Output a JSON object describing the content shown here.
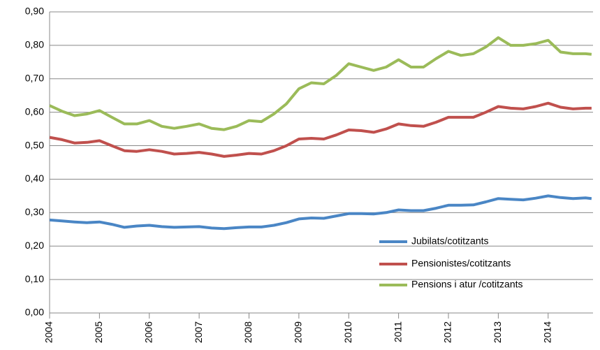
{
  "chart_data": {
    "type": "line",
    "x": [
      2004,
      2004.25,
      2004.5,
      2004.75,
      2005,
      2005.25,
      2005.5,
      2005.75,
      2006,
      2006.25,
      2006.5,
      2006.75,
      2007,
      2007.25,
      2007.5,
      2007.75,
      2008,
      2008.25,
      2008.5,
      2008.75,
      2009,
      2009.25,
      2009.5,
      2009.75,
      2010,
      2010.25,
      2010.5,
      2010.75,
      2011,
      2011.25,
      2011.5,
      2011.75,
      2012,
      2012.25,
      2012.5,
      2012.75,
      2013,
      2013.25,
      2013.5,
      2013.75,
      2014,
      2014.25,
      2014.5,
      2014.75,
      2014.87
    ],
    "series": [
      {
        "name": "Jubilats/cotitzants",
        "color": "#4a86c5",
        "values": [
          0.278,
          0.275,
          0.272,
          0.27,
          0.272,
          0.265,
          0.256,
          0.26,
          0.262,
          0.258,
          0.256,
          0.257,
          0.258,
          0.254,
          0.252,
          0.255,
          0.257,
          0.257,
          0.262,
          0.27,
          0.281,
          0.284,
          0.283,
          0.29,
          0.297,
          0.297,
          0.296,
          0.3,
          0.308,
          0.306,
          0.306,
          0.313,
          0.322,
          0.322,
          0.323,
          0.332,
          0.342,
          0.34,
          0.338,
          0.343,
          0.35,
          0.345,
          0.342,
          0.344,
          0.342
        ]
      },
      {
        "name": "Pensionistes/cotitzants",
        "color": "#c0504d",
        "values": [
          0.525,
          0.518,
          0.508,
          0.51,
          0.515,
          0.5,
          0.485,
          0.483,
          0.488,
          0.483,
          0.475,
          0.477,
          0.48,
          0.475,
          0.468,
          0.472,
          0.477,
          0.475,
          0.485,
          0.5,
          0.52,
          0.522,
          0.52,
          0.532,
          0.547,
          0.545,
          0.54,
          0.55,
          0.565,
          0.56,
          0.558,
          0.57,
          0.585,
          0.585,
          0.585,
          0.6,
          0.617,
          0.612,
          0.61,
          0.617,
          0.627,
          0.615,
          0.61,
          0.612,
          0.612
        ]
      },
      {
        "name": "Pensions i atur /cotitzants",
        "color": "#9bbb59",
        "values": [
          0.62,
          0.603,
          0.59,
          0.595,
          0.605,
          0.585,
          0.565,
          0.565,
          0.575,
          0.558,
          0.552,
          0.558,
          0.565,
          0.552,
          0.548,
          0.558,
          0.575,
          0.572,
          0.595,
          0.625,
          0.67,
          0.688,
          0.685,
          0.71,
          0.745,
          0.735,
          0.725,
          0.735,
          0.757,
          0.735,
          0.735,
          0.76,
          0.782,
          0.77,
          0.775,
          0.795,
          0.823,
          0.8,
          0.8,
          0.805,
          0.815,
          0.78,
          0.775,
          0.775,
          0.773
        ]
      }
    ],
    "xlim": [
      2004,
      2014.9
    ],
    "xticks": [
      2004,
      2005,
      2006,
      2007,
      2008,
      2009,
      2010,
      2011,
      2012,
      2013,
      2014
    ],
    "ylim": [
      0,
      0.9
    ],
    "yticks": [
      {
        "value": 0,
        "label": "0,00"
      },
      {
        "value": 0.1,
        "label": "0,10"
      },
      {
        "value": 0.2,
        "label": "0,20"
      },
      {
        "value": 0.3,
        "label": "0,30"
      },
      {
        "value": 0.4,
        "label": "0,40"
      },
      {
        "value": 0.5,
        "label": "0,50"
      },
      {
        "value": 0.6,
        "label": "0,60"
      },
      {
        "value": 0.7,
        "label": "0,70"
      },
      {
        "value": 0.8,
        "label": "0,80"
      },
      {
        "value": 0.9,
        "label": "0,90"
      }
    ],
    "grid": true,
    "legend": "lower-right"
  }
}
